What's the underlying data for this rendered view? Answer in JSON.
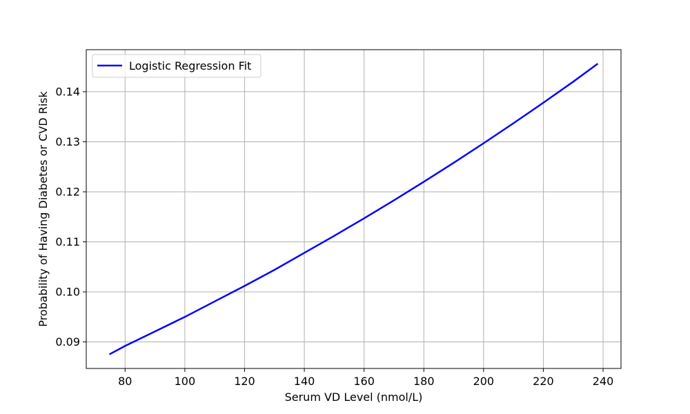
{
  "chart_data": {
    "type": "line",
    "title": "",
    "xlabel": "Serum VD Level (nmol/L)",
    "ylabel": "Probability of Having Diabetes or CVD Risk",
    "xlim": [
      67,
      246
    ],
    "ylim": [
      0.0847,
      0.1484
    ],
    "xticks": [
      80,
      100,
      120,
      140,
      160,
      180,
      200,
      220,
      240
    ],
    "yticks": [
      0.09,
      0.1,
      0.11,
      0.12,
      0.13,
      0.14
    ],
    "ytick_labels": [
      "0.09",
      "0.10",
      "0.11",
      "0.12",
      "0.13",
      "0.14"
    ],
    "grid": true,
    "legend_position": "upper left",
    "series": [
      {
        "name": "Logistic Regression Fit",
        "color": "#0000ff",
        "x": [
          75,
          80,
          90,
          100,
          110,
          120,
          130,
          140,
          150,
          160,
          170,
          180,
          190,
          200,
          210,
          220,
          230,
          238
        ],
        "y": [
          0.0876,
          0.0892,
          0.0921,
          0.095,
          0.0981,
          0.1012,
          0.1044,
          0.1078,
          0.1112,
          0.1147,
          0.1183,
          0.122,
          0.1258,
          0.1297,
          0.1337,
          0.1378,
          0.142,
          0.1455
        ]
      }
    ]
  }
}
